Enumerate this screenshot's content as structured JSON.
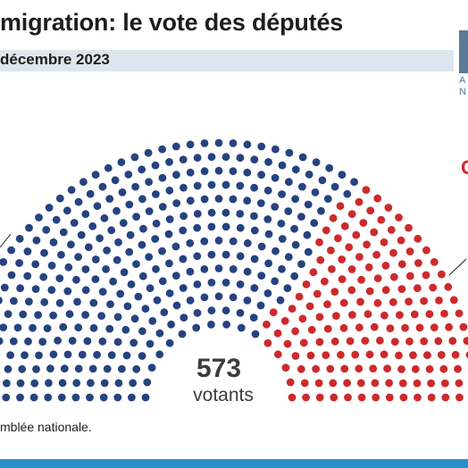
{
  "header": {
    "title": "migration: le vote des députés",
    "subtitle": "décembre 2023"
  },
  "logo": {
    "text": "A\nN"
  },
  "source": "mblée nationale.",
  "right_label": "C",
  "colors": {
    "blue": "#26437f",
    "red": "#cc2a2d",
    "grey": "#d2d2d2",
    "subtitle_bar": "#dde6ee",
    "footer_bar": "#2a8fc9",
    "logo": "#5b7a96"
  },
  "chart_data": {
    "type": "hemicycle",
    "center_value": "573",
    "center_label": "votants",
    "series": [
      {
        "color": "blue",
        "values": [
          349
        ]
      },
      {
        "color": "red",
        "values": [
          224
        ]
      },
      {
        "color": "grey",
        "values": [
          0
        ]
      }
    ]
  }
}
